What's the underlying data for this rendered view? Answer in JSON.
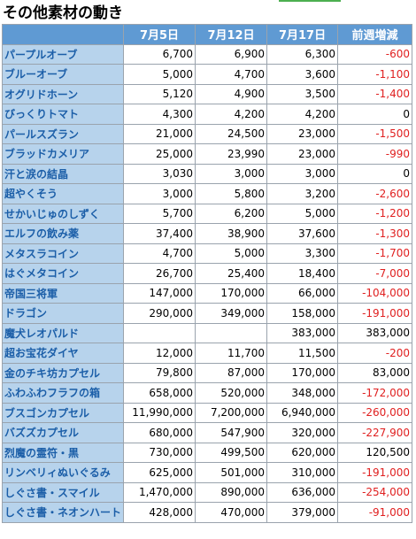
{
  "page": {
    "title": "その他素材の動き"
  },
  "table": {
    "headers": [
      "",
      "7月5日",
      "7月12日",
      "7月17日",
      "前週増減"
    ],
    "rows": [
      {
        "name": "パープルオーブ",
        "jul5": "6,700",
        "jul12": "6,900",
        "jul17": "6,300",
        "change": "-600",
        "negative": true
      },
      {
        "name": "ブルーオーブ",
        "jul5": "5,000",
        "jul12": "4,700",
        "jul17": "3,600",
        "change": "-1,100",
        "negative": true
      },
      {
        "name": "オグリドホーン",
        "jul5": "5,120",
        "jul12": "4,900",
        "jul17": "3,500",
        "change": "-1,400",
        "negative": true
      },
      {
        "name": "びっくりトマト",
        "jul5": "4,300",
        "jul12": "4,200",
        "jul17": "4,200",
        "change": "0",
        "negative": false
      },
      {
        "name": "パールスズラン",
        "jul5": "21,000",
        "jul12": "24,500",
        "jul17": "23,000",
        "change": "-1,500",
        "negative": true
      },
      {
        "name": "ブラッドカメリア",
        "jul5": "25,000",
        "jul12": "23,990",
        "jul17": "23,000",
        "change": "-990",
        "negative": true
      },
      {
        "name": "汗と涙の結晶",
        "jul5": "3,030",
        "jul12": "3,000",
        "jul17": "3,000",
        "change": "0",
        "negative": false
      },
      {
        "name": "超やくそう",
        "jul5": "3,000",
        "jul12": "5,800",
        "jul17": "3,200",
        "change": "-2,600",
        "negative": true
      },
      {
        "name": "せかいじゅのしずく",
        "jul5": "5,700",
        "jul12": "6,200",
        "jul17": "5,000",
        "change": "-1,200",
        "negative": true
      },
      {
        "name": "エルフの飲み薬",
        "jul5": "37,400",
        "jul12": "38,900",
        "jul17": "37,600",
        "change": "-1,300",
        "negative": true
      },
      {
        "name": "メタスラコイン",
        "jul5": "4,700",
        "jul12": "5,000",
        "jul17": "3,300",
        "change": "-1,700",
        "negative": true
      },
      {
        "name": "はぐメタコイン",
        "jul5": "26,700",
        "jul12": "25,400",
        "jul17": "18,400",
        "change": "-7,000",
        "negative": true
      },
      {
        "name": "帝国三将軍",
        "jul5": "147,000",
        "jul12": "170,000",
        "jul17": "66,000",
        "change": "-104,000",
        "negative": true
      },
      {
        "name": "ドラゴン",
        "jul5": "290,000",
        "jul12": "349,000",
        "jul17": "158,000",
        "change": "-191,000",
        "negative": true
      },
      {
        "name": "魔犬レオパルド",
        "jul5": "",
        "jul12": "",
        "jul17": "383,000",
        "change": "383,000",
        "negative": false
      },
      {
        "name": "超お宝花ダイヤ",
        "jul5": "12,000",
        "jul12": "11,700",
        "jul17": "11,500",
        "change": "-200",
        "negative": true
      },
      {
        "name": "金のチキ坊カプセル",
        "jul5": "79,800",
        "jul12": "87,000",
        "jul17": "170,000",
        "change": "83,000",
        "negative": false
      },
      {
        "name": "ふわふわフラフの箱",
        "jul5": "658,000",
        "jul12": "520,000",
        "jul17": "348,000",
        "change": "-172,000",
        "negative": true
      },
      {
        "name": "ブスゴンカプセル",
        "jul5": "11,990,000",
        "jul12": "7,200,000",
        "jul17": "6,940,000",
        "change": "-260,000",
        "negative": true
      },
      {
        "name": "バズズカプセル",
        "jul5": "680,000",
        "jul12": "547,900",
        "jul17": "320,000",
        "change": "-227,900",
        "negative": true
      },
      {
        "name": "烈魔の霊符・黒",
        "jul5": "730,000",
        "jul12": "499,500",
        "jul17": "620,000",
        "change": "120,500",
        "negative": false
      },
      {
        "name": "リンベリィぬいぐるみ",
        "jul5": "625,000",
        "jul12": "501,000",
        "jul17": "310,000",
        "change": "-191,000",
        "negative": true
      },
      {
        "name": "しぐさ書・スマイル",
        "jul5": "1,470,000",
        "jul12": "890,000",
        "jul17": "636,000",
        "change": "-254,000",
        "negative": true
      },
      {
        "name": "しぐさ書・ネオンハート",
        "jul5": "428,000",
        "jul12": "470,000",
        "jul17": "379,000",
        "change": "-91,000",
        "negative": true
      }
    ]
  },
  "colors": {
    "header_bg": "#5f9ad3",
    "name_bg": "#b7d3ec",
    "name_text": "#1b5ea8",
    "negative": "#e02020"
  }
}
